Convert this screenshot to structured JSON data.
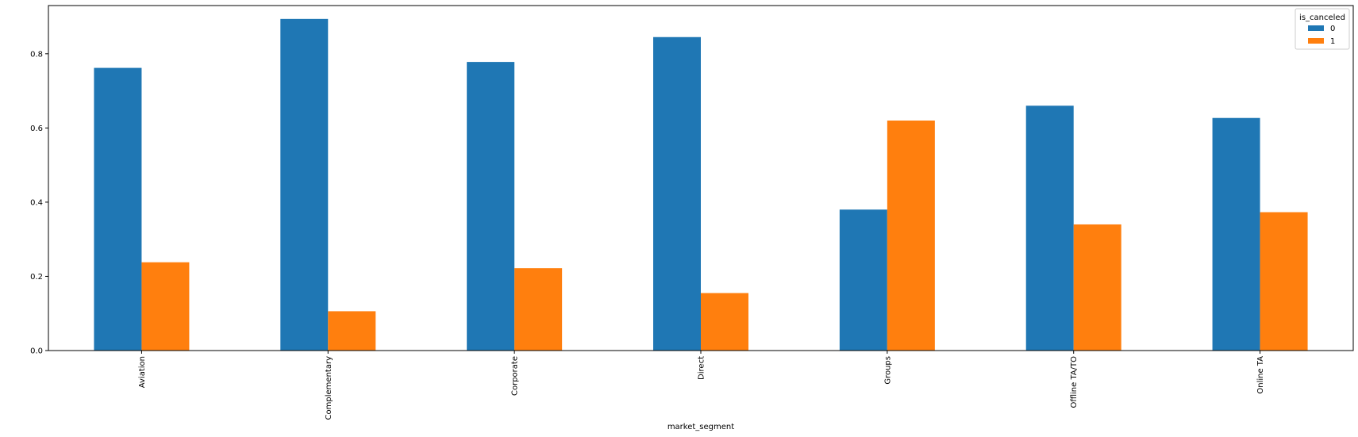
{
  "chart_data": {
    "type": "bar",
    "title": "",
    "xlabel": "market_segment",
    "ylabel": "",
    "categories": [
      "Aviation",
      "Complementary",
      "Corporate",
      "Direct",
      "Groups",
      "Offline TA/TO",
      "Online TA"
    ],
    "series": [
      {
        "name": "0",
        "color": "#1f77b4",
        "values": [
          0.762,
          0.894,
          0.778,
          0.845,
          0.38,
          0.66,
          0.627
        ]
      },
      {
        "name": "1",
        "color": "#ff7f0e",
        "values": [
          0.238,
          0.106,
          0.222,
          0.155,
          0.62,
          0.34,
          0.373
        ]
      }
    ],
    "ylim": [
      0,
      0.93
    ],
    "yticks": [
      0.0,
      0.2,
      0.4,
      0.6,
      0.8
    ],
    "ytick_labels": [
      "0.0",
      "0.2",
      "0.4",
      "0.6",
      "0.8"
    ],
    "legend": {
      "title": "is_canceled",
      "placement": "top-right"
    },
    "grid": false
  }
}
